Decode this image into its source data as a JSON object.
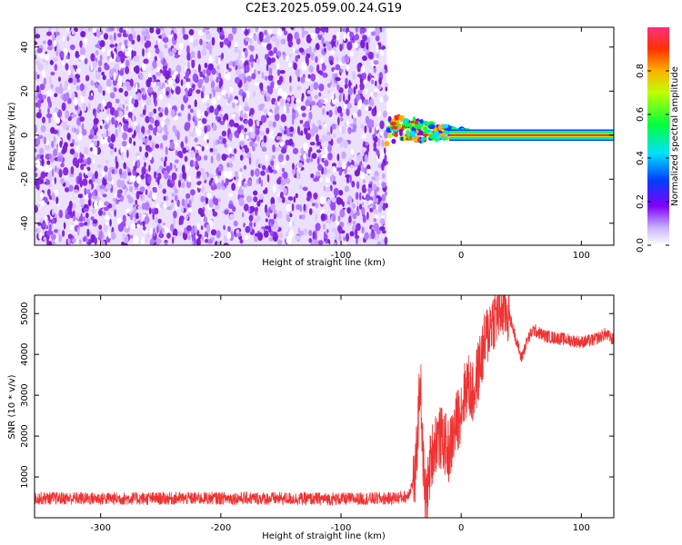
{
  "title": "C2E3.2025.059.00.24.G19",
  "colors": {
    "snr_line": "#ee3333",
    "noise_purple": "#8a2be2",
    "carrier_red": "#ff2020",
    "axis": "#000000",
    "background": "#ffffff"
  },
  "chart_data": [
    {
      "type": "heatmap",
      "title": "C2E3.2025.059.00.24.G19",
      "xlabel": "Height of straight line (km)",
      "ylabel": "Frequency (Hz)",
      "xlim": [
        -355,
        127
      ],
      "ylim": [
        -50,
        49
      ],
      "xticks": [
        -300,
        -200,
        -100,
        0,
        100
      ],
      "yticks": [
        -40,
        -20,
        0,
        20,
        40
      ],
      "colorbar": {
        "label": "Normalized spectral amplitude",
        "range": [
          0.0,
          1.0
        ],
        "ticks": [
          0.0,
          0.2,
          0.4,
          0.6,
          0.8
        ]
      },
      "regions": [
        {
          "name": "noise",
          "x_range": [
            -355,
            -62
          ],
          "freq_range": [
            -50,
            49
          ],
          "amplitude": 0.15
        },
        {
          "name": "transition",
          "x_range": [
            -62,
            10
          ],
          "freq_offsets": [
            12,
            8,
            4,
            3,
            2,
            1
          ],
          "amplitude": 0.6
        },
        {
          "name": "carrier",
          "x_range": [
            10,
            127
          ],
          "freq_center": 0,
          "half_width": 2,
          "amplitude": 1.0
        }
      ],
      "grid": false
    },
    {
      "type": "line",
      "xlabel": "Height of straight line (km)",
      "ylabel": "SNR (10 * v/v)",
      "xlim": [
        -355,
        127
      ],
      "ylim": [
        0,
        5450
      ],
      "xticks": [
        -300,
        -200,
        -100,
        0,
        100
      ],
      "yticks": [
        1000,
        2000,
        3000,
        4000,
        5000
      ],
      "series": [
        {
          "x": [
            -355,
            -300,
            -250,
            -200,
            -150,
            -100,
            -60,
            -45,
            -38,
            -34,
            -32,
            -30,
            -28,
            -25,
            -20,
            -15,
            -10,
            -5,
            0,
            5,
            10,
            15,
            20,
            25,
            30,
            35,
            40,
            45,
            50,
            55,
            60,
            70,
            80,
            90,
            100,
            110,
            120,
            127
          ],
          "y": [
            480,
            470,
            470,
            480,
            470,
            460,
            470,
            520,
            1000,
            3500,
            1600,
            400,
            700,
            1500,
            2000,
            1900,
            1600,
            2200,
            2700,
            3300,
            3000,
            3700,
            4300,
            4800,
            5000,
            5150,
            4950,
            4450,
            3900,
            4350,
            4600,
            4450,
            4400,
            4350,
            4300,
            4350,
            4500,
            4350
          ],
          "noise_amplitude": 160
        }
      ],
      "grid": false
    }
  ]
}
